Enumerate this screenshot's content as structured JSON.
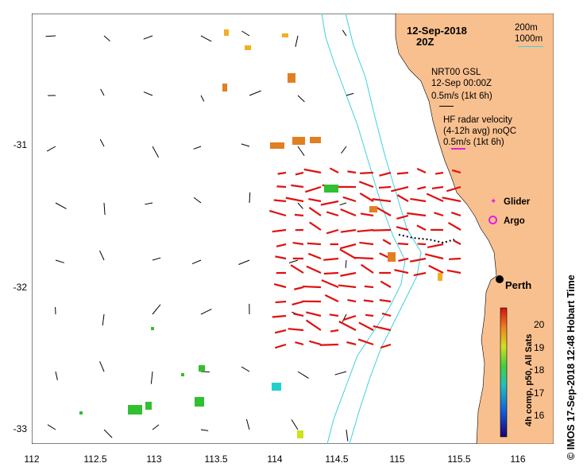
{
  "header": {
    "date": "12-Sep-2018",
    "time": "20Z"
  },
  "depth_legend": {
    "line1": "200m",
    "line2": "1000m"
  },
  "model": {
    "name": "NRT00 GSL",
    "date": "12-Sep 00:00Z",
    "scale": "0.5m/s (1kt 6h)"
  },
  "radar": {
    "line1": "HF radar velocity",
    "line2": "(4-12h avg) noQC",
    "scale": "0.5m/s (1kt 6h)"
  },
  "markers": {
    "glider": "Glider",
    "argo": "Argo",
    "city": "Perth"
  },
  "colorbar": {
    "ticks": [
      "20",
      "19",
      "18",
      "17",
      "16"
    ],
    "title": "4h comp, p50, All Sats"
  },
  "credit": "IMOS 17-Sep-2018 12:48 Hobart Time",
  "copyright": "©",
  "axes": {
    "x_ticks": [
      "112",
      "112.5",
      "113",
      "113.5",
      "114",
      "114.5",
      "115",
      "115.5",
      "116"
    ],
    "y_ticks": [
      "-31",
      "-32",
      "-33"
    ]
  },
  "colors": {
    "land": "#f9c08f",
    "bathy": "#3fd0e0",
    "radar_arrow": "#e01010",
    "glider": "#e020e0"
  }
}
